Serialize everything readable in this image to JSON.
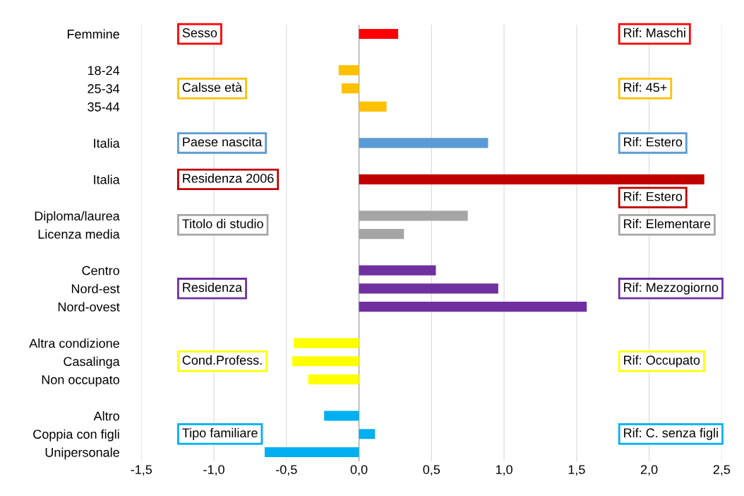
{
  "chart_data": {
    "type": "bar",
    "orientation": "horizontal",
    "categories": [
      "Femmine",
      null,
      "18-24",
      "25-34",
      "35-44",
      null,
      "Italia",
      null,
      "Italia",
      null,
      "Diploma/laurea",
      "Licenza media",
      null,
      "Centro",
      "Nord-est",
      "Nord-ovest",
      null,
      "Altra condizione",
      "Casalinga",
      "Non occupato",
      null,
      "Altro",
      "Coppia con figli",
      "Unipersonale"
    ],
    "values": [
      0.27,
      null,
      -0.14,
      -0.12,
      0.19,
      null,
      0.89,
      null,
      2.38,
      null,
      0.75,
      0.31,
      null,
      0.53,
      0.96,
      1.57,
      null,
      -0.45,
      -0.46,
      -0.35,
      null,
      -0.24,
      0.11,
      -0.65
    ],
    "colors": [
      "#ff0000",
      null,
      "#ffc000",
      "#ffc000",
      "#ffc000",
      null,
      "#5b9bd5",
      null,
      "#c00000",
      null,
      "#a5a5a5",
      "#a5a5a5",
      null,
      "#7030a0",
      "#7030a0",
      "#7030a0",
      null,
      "#ffff00",
      "#ffff00",
      "#ffff00",
      null,
      "#00b0f0",
      "#00b0f0",
      "#00b0f0"
    ],
    "xlim": [
      -1.5,
      2.5
    ],
    "xticks": [
      {
        "value": -1.5,
        "label": "-1,5"
      },
      {
        "value": -1.0,
        "label": "-1,0"
      },
      {
        "value": -0.5,
        "label": "-0,5"
      },
      {
        "value": 0,
        "label": "0,0"
      },
      {
        "value": 0.5,
        "label": "0,5"
      },
      {
        "value": 1.0,
        "label": "1,0"
      },
      {
        "value": 1.5,
        "label": "1,5"
      },
      {
        "value": 2.0,
        "label": "2,0"
      },
      {
        "value": 2.5,
        "label": "2,5"
      }
    ],
    "grid": "x",
    "annotations": [
      "Sesso",
      "Rif: Maschi",
      "Calsse età",
      "Rif: 45+",
      "Paese nascita",
      "Rif: Estero",
      "Residenza 2006",
      "Rif: Estero",
      "Titolo di studio",
      "Rif: Elementare",
      "Residenza",
      "Rif: Mezzogiorno",
      "Cond.Profess.",
      "Rif: Occupato",
      "Tipo familiare",
      "Rif: C. senza figli"
    ]
  }
}
